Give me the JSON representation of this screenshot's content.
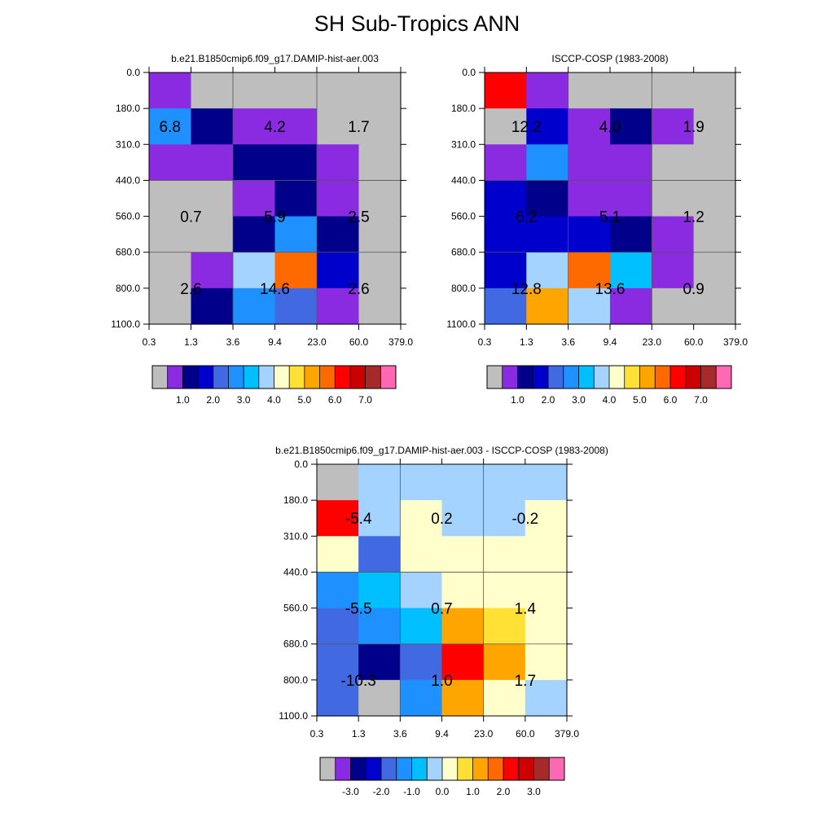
{
  "title": "SH Sub-Tropics ANN",
  "chart_data": [
    {
      "type": "heatmap",
      "title": "b.e21.B1850cmip6.f09_g17.DAMIP-hist-aer.003",
      "xticks": [
        "0.3",
        "1.3",
        "3.6",
        "9.4",
        "23.0",
        "60.0",
        "379.0"
      ],
      "yticks": [
        "0.0",
        "180.0",
        "310.0",
        "440.0",
        "560.0",
        "680.0",
        "800.0",
        "1100.0"
      ],
      "cell_colors": [
        [
          "#8a2be2",
          "#bebebe",
          "#bebebe",
          "#bebebe",
          "#bebebe",
          "#bebebe"
        ],
        [
          "#1e90ff",
          "#00008b",
          "#8a2be2",
          "#8a2be2",
          "#bebebe",
          "#bebebe"
        ],
        [
          "#8a2be2",
          "#8a2be2",
          "#00008b",
          "#00008b",
          "#8a2be2",
          "#bebebe"
        ],
        [
          "#bebebe",
          "#bebebe",
          "#8a2be2",
          "#00008b",
          "#8a2be2",
          "#bebebe"
        ],
        [
          "#bebebe",
          "#bebebe",
          "#00008b",
          "#1e90ff",
          "#00008b",
          "#bebebe"
        ],
        [
          "#bebebe",
          "#8a2be2",
          "#a4d3ff",
          "#ff6a00",
          "#0000cd",
          "#bebebe"
        ],
        [
          "#bebebe",
          "#00008b",
          "#1e90ff",
          "#4169e1",
          "#8a2be2",
          "#bebebe"
        ]
      ],
      "labels": [
        {
          "text": "6.8",
          "col": 0.5,
          "row": 1.5
        },
        {
          "text": "4.2",
          "col": 3,
          "row": 1.5
        },
        {
          "text": "1.7",
          "col": 5,
          "row": 1.5
        },
        {
          "text": "0.7",
          "col": 1,
          "row": 4
        },
        {
          "text": "5.9",
          "col": 3,
          "row": 4
        },
        {
          "text": "2.5",
          "col": 5,
          "row": 4
        },
        {
          "text": "2.6",
          "col": 1,
          "row": 6
        },
        {
          "text": "14.6",
          "col": 3,
          "row": 6
        },
        {
          "text": "2.6",
          "col": 5,
          "row": 6
        }
      ],
      "colorbar": {
        "colors": [
          "#bebebe",
          "#8a2be2",
          "#00008b",
          "#0000cd",
          "#4169e1",
          "#1e90ff",
          "#00bfff",
          "#a4d3ff",
          "#ffffcc",
          "#ffe135",
          "#ffa500",
          "#ff6a00",
          "#ff0000",
          "#cc0000",
          "#a52a2a",
          "#ff69b4"
        ],
        "labels": [
          "1.0",
          "2.0",
          "3.0",
          "4.0",
          "5.0",
          "6.0",
          "7.0"
        ]
      }
    },
    {
      "type": "heatmap",
      "title": "ISCCP-COSP (1983-2008)",
      "xticks": [
        "0.3",
        "1.3",
        "3.6",
        "9.4",
        "23.0",
        "60.0",
        "379.0"
      ],
      "yticks": [
        "0.0",
        "180.0",
        "310.0",
        "440.0",
        "560.0",
        "680.0",
        "800.0",
        "1100.0"
      ],
      "cell_colors": [
        [
          "#ff0000",
          "#8a2be2",
          "#bebebe",
          "#bebebe",
          "#bebebe",
          "#bebebe"
        ],
        [
          "#bebebe",
          "#0000cd",
          "#8a2be2",
          "#00008b",
          "#8a2be2",
          "#bebebe"
        ],
        [
          "#8a2be2",
          "#1e90ff",
          "#8a2be2",
          "#8a2be2",
          "#bebebe",
          "#bebebe"
        ],
        [
          "#0000cd",
          "#00008b",
          "#8a2be2",
          "#8a2be2",
          "#bebebe",
          "#bebebe"
        ],
        [
          "#0000cd",
          "#0000cd",
          "#0000cd",
          "#00008b",
          "#8a2be2",
          "#bebebe"
        ],
        [
          "#0000cd",
          "#a4d3ff",
          "#ff6a00",
          "#00bfff",
          "#8a2be2",
          "#bebebe"
        ],
        [
          "#4169e1",
          "#ffa500",
          "#a4d3ff",
          "#8a2be2",
          "#bebebe",
          "#bebebe"
        ]
      ],
      "labels": [
        {
          "text": "12.2",
          "col": 1,
          "row": 1.5
        },
        {
          "text": "4.0",
          "col": 3,
          "row": 1.5
        },
        {
          "text": "1.9",
          "col": 5,
          "row": 1.5
        },
        {
          "text": "6.2",
          "col": 1,
          "row": 4
        },
        {
          "text": "5.1",
          "col": 3,
          "row": 4
        },
        {
          "text": "1.2",
          "col": 5,
          "row": 4
        },
        {
          "text": "12.8",
          "col": 1,
          "row": 6
        },
        {
          "text": "13.6",
          "col": 3,
          "row": 6
        },
        {
          "text": "0.9",
          "col": 5,
          "row": 6
        }
      ],
      "colorbar": {
        "colors": [
          "#bebebe",
          "#8a2be2",
          "#00008b",
          "#0000cd",
          "#4169e1",
          "#1e90ff",
          "#00bfff",
          "#a4d3ff",
          "#ffffcc",
          "#ffe135",
          "#ffa500",
          "#ff6a00",
          "#ff0000",
          "#cc0000",
          "#a52a2a",
          "#ff69b4"
        ],
        "labels": [
          "1.0",
          "2.0",
          "3.0",
          "4.0",
          "5.0",
          "6.0",
          "7.0"
        ]
      }
    },
    {
      "type": "heatmap",
      "title": "b.e21.B1850cmip6.f09_g17.DAMIP-hist-aer.003 - ISCCP-COSP (1983-2008)",
      "xticks": [
        "0.3",
        "1.3",
        "3.6",
        "9.4",
        "23.0",
        "60.0",
        "379.0"
      ],
      "yticks": [
        "0.0",
        "180.0",
        "310.0",
        "440.0",
        "560.0",
        "680.0",
        "800.0",
        "1100.0"
      ],
      "cell_colors": [
        [
          "#bebebe",
          "#a4d3ff",
          "#a4d3ff",
          "#a4d3ff",
          "#a4d3ff",
          "#a4d3ff"
        ],
        [
          "#ff0000",
          "#a4d3ff",
          "#ffffcc",
          "#a4d3ff",
          "#a4d3ff",
          "#ffffcc"
        ],
        [
          "#ffffcc",
          "#4169e1",
          "#ffffcc",
          "#ffffcc",
          "#ffffcc",
          "#ffffcc"
        ],
        [
          "#1e90ff",
          "#00bfff",
          "#a4d3ff",
          "#ffffcc",
          "#ffffcc",
          "#ffffcc"
        ],
        [
          "#4169e1",
          "#1e90ff",
          "#00bfff",
          "#ffa500",
          "#ffe135",
          "#ffffcc"
        ],
        [
          "#4169e1",
          "#00008b",
          "#4169e1",
          "#ff0000",
          "#ffa500",
          "#ffffcc"
        ],
        [
          "#4169e1",
          "#bebebe",
          "#1e90ff",
          "#ffa500",
          "#ffffcc",
          "#a4d3ff"
        ]
      ],
      "labels": [
        {
          "text": "-5.4",
          "col": 1,
          "row": 1.5
        },
        {
          "text": "0.2",
          "col": 3,
          "row": 1.5
        },
        {
          "text": "-0.2",
          "col": 5,
          "row": 1.5
        },
        {
          "text": "-5.5",
          "col": 1,
          "row": 4
        },
        {
          "text": "0.7",
          "col": 3,
          "row": 4
        },
        {
          "text": "1.4",
          "col": 5,
          "row": 4
        },
        {
          "text": "-10.3",
          "col": 1,
          "row": 6
        },
        {
          "text": "1.0",
          "col": 3,
          "row": 6
        },
        {
          "text": "1.7",
          "col": 5,
          "row": 6
        }
      ],
      "colorbar": {
        "colors": [
          "#bebebe",
          "#8a2be2",
          "#00008b",
          "#0000cd",
          "#4169e1",
          "#1e90ff",
          "#00bfff",
          "#a4d3ff",
          "#ffffcc",
          "#ffe135",
          "#ffa500",
          "#ff6a00",
          "#ff0000",
          "#cc0000",
          "#a52a2a",
          "#ff69b4"
        ],
        "labels": [
          "-3.0",
          "-2.0",
          "-1.0",
          "0.0",
          "1.0",
          "2.0",
          "3.0"
        ]
      }
    }
  ]
}
